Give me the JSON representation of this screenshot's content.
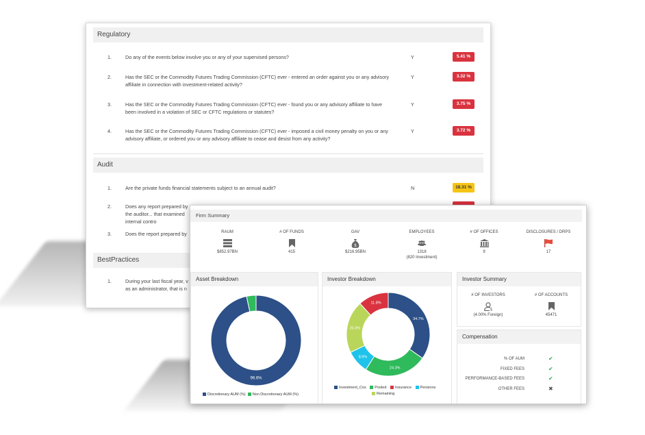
{
  "regulatory": {
    "title": "Regulatory",
    "questions": [
      {
        "num": "1.",
        "text": "Do any of the events below involve you or any of your supervised persons?",
        "answer": "Y",
        "pct": "5.41 %"
      },
      {
        "num": "2.",
        "text": "Has the SEC or the Commodity Futures Trading Commission (CFTC) ever - entered an order against you or any advisory affiliate in connection with investment-related activity?",
        "answer": "Y",
        "pct": "3.32 %"
      },
      {
        "num": "3.",
        "text": "Has the SEC or the Commodity Futures Trading Commission (CFTC) ever - found you or any advisory affiliate to have been involved in a violation of SEC or CFTC regulations or statutes?",
        "answer": "Y",
        "pct": "3.75 %"
      },
      {
        "num": "4.",
        "text": "Has the SEC or the Commodity Futures Trading Commission (CFTC) ever - imposed a civil money penalty on you or any advisory affiliate, or ordered you or any advisory affiliate to cease and desist from any activity?",
        "answer": "Y",
        "pct": "3.72 %"
      }
    ]
  },
  "audit": {
    "title": "Audit",
    "questions": [
      {
        "num": "1.",
        "text": "Are the private funds financial statements subject to an annual audit?",
        "answer": "N",
        "pct": "18.31 %"
      },
      {
        "num": "2.",
        "text": "Does any report prepared by the auditor... that examined internal contro",
        "answer": "",
        "pct": ""
      },
      {
        "num": "3.",
        "text": "Does the report prepared by",
        "answer": "",
        "pct": ""
      }
    ]
  },
  "best_practices": {
    "title": "BestPractices",
    "questions": [
      {
        "num": "1.",
        "text": "During your last fiscal year, v as an administrator, that is n",
        "answer": "",
        "pct": ""
      }
    ]
  },
  "firm_summary": {
    "title": "Firm Summary",
    "stats": [
      {
        "label": "RAUM",
        "value": "$852.97BN",
        "value2": "",
        "icon": "server-icon"
      },
      {
        "label": "# OF FUNDS",
        "value": "415",
        "value2": "",
        "icon": "bookmark-icon"
      },
      {
        "label": "GAV",
        "value": "$216.95BN",
        "value2": "",
        "icon": "money-bag-icon"
      },
      {
        "label": "EMPLOYEES",
        "value": "1318",
        "value2": "(820 Investment)",
        "icon": "people-icon"
      },
      {
        "label": "# OF OFFICES",
        "value": "9",
        "value2": "",
        "icon": "bank-icon"
      },
      {
        "label": "DISCLOSURES / DRPS",
        "value": "17",
        "value2": "",
        "icon": "flag-icon"
      }
    ]
  },
  "asset_breakdown": {
    "title": "Asset Breakdown",
    "legend": [
      "Discretionary AUM (%)",
      "Non Discretionary AUM (%)"
    ]
  },
  "investor_breakdown": {
    "title": "Investor Breakdown",
    "legend": [
      "Investment_Cos",
      "Pooled",
      "Insurance",
      "Pensions",
      "Remaining"
    ]
  },
  "investor_summary": {
    "title": "Investor Summary",
    "investors_label": "# OF INVESTORS",
    "investors_value": "(4.00% Foreign)",
    "accounts_label": "# OF ACCOUNTS",
    "accounts_value": "45471"
  },
  "compensation": {
    "title": "Compensation",
    "rows": [
      {
        "label": "% OF AUM",
        "mark": "✔",
        "status": "yes"
      },
      {
        "label": "FIXED FEES",
        "mark": "✔",
        "status": "yes"
      },
      {
        "label": "PERFORMANCE-BASED FEES",
        "mark": "✔",
        "status": "yes"
      },
      {
        "label": "OTHER FEES",
        "mark": "✖",
        "status": "no"
      }
    ]
  },
  "chart_data": [
    {
      "type": "pie",
      "categories": [
        "Discretionary AUM (%)",
        "Non Discretionary AUM (%)"
      ],
      "values": [
        96.6,
        3.4
      ],
      "colors": [
        "#2c5087",
        "#2fba5c"
      ],
      "data_labels": [
        "96.6%",
        ""
      ]
    },
    {
      "type": "pie",
      "categories": [
        "Investment_Cos",
        "Pooled",
        "Insurance",
        "Pensions",
        "Remaining"
      ],
      "order": [
        "Investment_Cos",
        "Pooled",
        "Remaining",
        "Insurance",
        "Pensions"
      ],
      "values": [
        34.7,
        24.3,
        20.3,
        11.8,
        8.9
      ],
      "colors": [
        "#2c5087",
        "#2fba5c",
        "#b9d65a",
        "#d9333f",
        "#1fc3ea"
      ],
      "data_labels": [
        "34.7%",
        "24.3%",
        "20.3%",
        "11.8%",
        "8.9%"
      ]
    }
  ]
}
